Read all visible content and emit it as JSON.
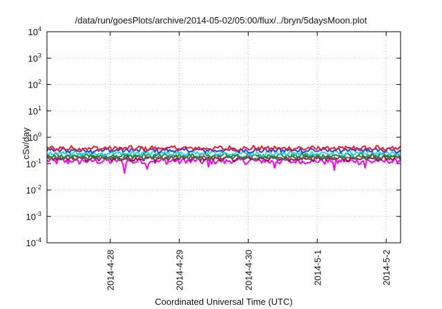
{
  "chart_data": {
    "type": "line",
    "title": "/data/run/goesPlots/archive/2014-05-02/05:00/flux/../bryn/5daysMoon.plot",
    "xlabel": "Coordinated Universal Time (UTC)",
    "ylabel": "cSv/day",
    "yscale": "log",
    "ylim": [
      0.0001,
      10000
    ],
    "yticks": [
      {
        "mantissa": "10",
        "exp": "-4",
        "value": 0.0001
      },
      {
        "mantissa": "10",
        "exp": "-3",
        "value": 0.001
      },
      {
        "mantissa": "10",
        "exp": "-2",
        "value": 0.01
      },
      {
        "mantissa": "10",
        "exp": "-1",
        "value": 0.1
      },
      {
        "mantissa": "10",
        "exp": "0",
        "value": 1
      },
      {
        "mantissa": "10",
        "exp": "1",
        "value": 10
      },
      {
        "mantissa": "10",
        "exp": "2",
        "value": 100
      },
      {
        "mantissa": "10",
        "exp": "3",
        "value": 1000
      },
      {
        "mantissa": "10",
        "exp": "4",
        "value": 10000
      }
    ],
    "xlim": [
      "2014-04-27 02:00",
      "2014-05-02 05:00"
    ],
    "xticks": [
      {
        "label": "2014-4-28",
        "date": "2014-04-28"
      },
      {
        "label": "2014-4-29",
        "date": "2014-04-29"
      },
      {
        "label": "2014-4-30",
        "date": "2014-04-30"
      },
      {
        "label": "2014-5-1",
        "date": "2014-05-01"
      },
      {
        "label": "2014-5-2",
        "date": "2014-05-02"
      }
    ],
    "grid": true,
    "series": [
      {
        "color": "#e8202a",
        "level": 0.38
      },
      {
        "color": "#2a3fe8",
        "level": 0.32
      },
      {
        "color": "#20d8e0",
        "level": 0.245
      },
      {
        "color": "#1a8a3a",
        "level": 0.2
      },
      {
        "color": "#606060",
        "level": 0.17
      },
      {
        "color": "#8a1a30",
        "level": 0.155
      },
      {
        "color": "#ff00ff",
        "level": 0.125
      }
    ]
  }
}
